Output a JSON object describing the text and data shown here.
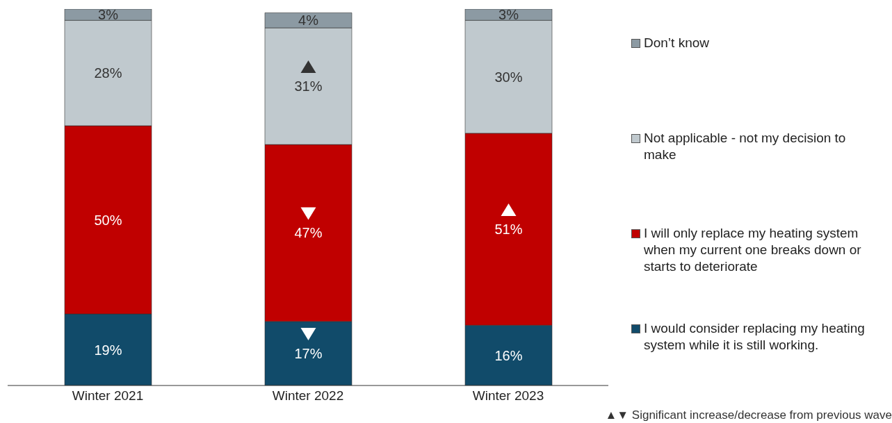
{
  "chart_data": {
    "type": "bar",
    "stacked": true,
    "categories": [
      "Winter 2021",
      "Winter 2022",
      "Winter 2023"
    ],
    "series": [
      {
        "name": "I would consider replacing my heating system while it is still working.",
        "color": "#114b6a",
        "values": [
          19,
          17,
          16
        ],
        "value_labels": [
          "19%",
          "17%",
          "16%"
        ]
      },
      {
        "name": "I will only replace my heating system when my current one breaks down or starts to deteriorate",
        "color": "#c00000",
        "values": [
          50,
          47,
          51
        ],
        "value_labels": [
          "50%",
          "47%",
          "51%"
        ]
      },
      {
        "name": "Not applicable - not my decision to make",
        "color": "#c0c9ce",
        "values": [
          28,
          31,
          30
        ],
        "value_labels": [
          "28%",
          "31%",
          "30%"
        ]
      },
      {
        "name": "Don’t know",
        "color": "#8c9aa3",
        "values": [
          3,
          4,
          3
        ],
        "value_labels": [
          "3%",
          "4%",
          "3%"
        ]
      }
    ],
    "legend": "right",
    "grid": false,
    "annotations": [
      "▲▼ Significant increase/decrease from previous wave"
    ]
  }
}
